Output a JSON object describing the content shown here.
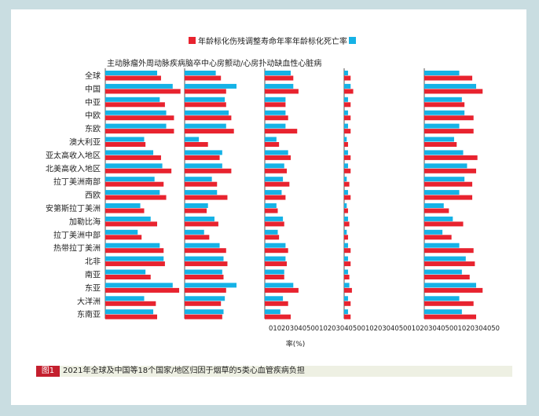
{
  "legend": {
    "label": "年龄标化伤残调整寿命年率年龄标化死亡率"
  },
  "subtitle": "主动脉瘤外周动脉疾病脑卒中心房颤动/心房扑动缺血性心脏病",
  "figure": {
    "label": "图1",
    "caption": "2021年全球及中国等18个国家/地区归因于烟草的5类心血管疾病负担"
  },
  "chart_data": {
    "type": "bar",
    "orientation": "horizontal",
    "colors": {
      "dalys": "#15b2e6",
      "deaths": "#e8232f"
    },
    "xlabel": "率(%)",
    "x_tick_text": "0102030405001020304050010203040500102030405001020304050",
    "categories": [
      "全球",
      "中国",
      "中亚",
      "中欧",
      "东欧",
      "澳大利亚",
      "亚太高收入地区",
      "北美高收入地区",
      "拉丁美洲南部",
      "西欧",
      "安第斯拉丁美洲",
      "加勒比海",
      "拉丁美洲中部",
      "热带拉丁美洲",
      "北非",
      "南亚",
      "东亚",
      "大洋洲",
      "东南亚"
    ],
    "panels": [
      {
        "name": "主动脉瘤",
        "series": [
          {
            "name": "年龄标化伤残调整寿命年率",
            "values": [
              40,
              52,
              42,
              47,
              47,
              30,
              37,
              44,
              38,
              42,
              27,
              35,
              25,
              42,
              45,
              31,
              52,
              30,
              37
            ]
          },
          {
            "name": "年龄标化死亡率",
            "values": [
              43,
              58,
              46,
              53,
              53,
              31,
              43,
              51,
              45,
              47,
              30,
              40,
              28,
              45,
              46,
              35,
              57,
              39,
              40
            ]
          }
        ]
      },
      {
        "name": "外周动脉疾病",
        "series": [
          {
            "name": "年龄标化伤残调整寿命年率",
            "values": [
              24,
              40,
              31,
              34,
              32,
              11,
              29,
              29,
              21,
              25,
              18,
              23,
              15,
              27,
              30,
              29,
              40,
              31,
              30
            ]
          },
          {
            "name": "年龄标化死亡率",
            "values": [
              28,
              32,
              32,
              36,
              38,
              18,
              27,
              36,
              25,
              33,
              17,
              26,
              19,
              32,
              33,
              30,
              32,
              28,
              29
            ]
          }
        ]
      },
      {
        "name": "脑卒中",
        "series": [
          {
            "name": "年龄标化伤残调整寿命年率",
            "values": [
              20,
              22,
              16,
              16,
              16,
              9,
              18,
              15,
              14,
              13,
              9,
              14,
              10,
              16,
              16,
              15,
              22,
              14,
              12
            ]
          },
          {
            "name": "年龄标化死亡率",
            "values": [
              22,
              26,
              16,
              18,
              25,
              11,
              20,
              17,
              19,
              16,
              10,
              15,
              11,
              18,
              17,
              15,
              26,
              18,
              20
            ]
          }
        ]
      },
      {
        "name": "心房颤动/心房扑动",
        "series": [
          {
            "name": "年龄标化伤残调整寿命年率",
            "values": [
              3,
              5,
              3,
              3,
              3,
              2,
              3,
              3,
              2,
              3,
              2,
              3,
              2,
              3,
              3,
              3,
              4,
              3,
              3
            ]
          },
          {
            "name": "年龄标化死亡率",
            "values": [
              5,
              7,
              5,
              5,
              5,
              3,
              5,
              5,
              4,
              5,
              3,
              4,
              3,
              5,
              5,
              4,
              6,
              5,
              5
            ]
          }
        ]
      },
      {
        "name": "缺血性心脏病",
        "series": [
          {
            "name": "年龄标化伤残调整寿命年率",
            "values": [
              27,
              40,
              29,
              31,
              27,
              23,
              30,
              33,
              31,
              27,
              15,
              22,
              14,
              27,
              32,
              29,
              40,
              27,
              29
            ]
          },
          {
            "name": "年龄标化死亡率",
            "values": [
              37,
              45,
              31,
              38,
              38,
              25,
              41,
              40,
              37,
              37,
              19,
              30,
              21,
              38,
              39,
              35,
              45,
              38,
              40
            ]
          }
        ]
      }
    ]
  }
}
